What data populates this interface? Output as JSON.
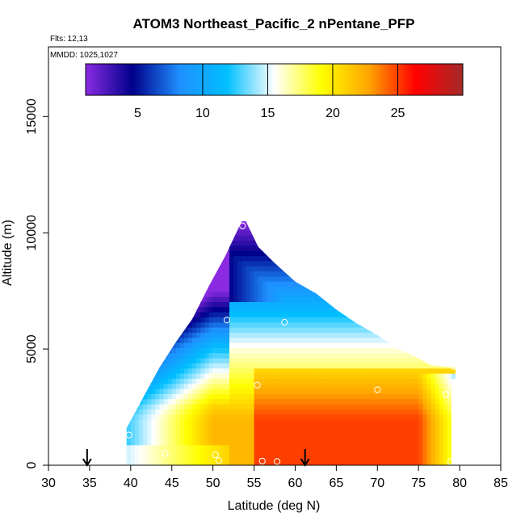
{
  "chart_data": {
    "type": "heatmap",
    "title": "ATOM3 Northeast_Pacific_2 nPentane_PFP",
    "subtitle_flights": "Flts: 12,13",
    "subtitle_dates": "MMDD: 1025,1027",
    "xlabel": "Latitude (deg N)",
    "ylabel": "Altitude (m)",
    "xlim": [
      30,
      85
    ],
    "ylim": [
      0,
      18000
    ],
    "x_ticks": [
      30,
      35,
      40,
      45,
      50,
      55,
      60,
      65,
      70,
      75,
      80,
      85
    ],
    "y_ticks": [
      0,
      5000,
      10000,
      15000
    ],
    "colorbar": {
      "range": [
        1,
        30
      ],
      "ticks": [
        5,
        10,
        15,
        20,
        25
      ],
      "tick_labels": [
        "5",
        "10",
        "15",
        "20",
        "25"
      ],
      "dividers": [
        10,
        15,
        20,
        25
      ],
      "colors": [
        "#8a2be2",
        "#00008b",
        "#1e90ff",
        "#00bfff",
        "#ffffff",
        "#ffff00",
        "#ffa500",
        "#ff0000",
        "#a52a2a"
      ]
    },
    "arrow_latitudes": [
      34.7,
      61.2
    ],
    "sample_points": [
      {
        "lat": 53.6,
        "alt": 10300
      },
      {
        "lat": 51.7,
        "alt": 6250
      },
      {
        "lat": 58.7,
        "alt": 6150
      },
      {
        "lat": 79.3,
        "alt": 4250
      },
      {
        "lat": 55.4,
        "alt": 3450
      },
      {
        "lat": 70.0,
        "alt": 3250
      },
      {
        "lat": 78.3,
        "alt": 3050
      },
      {
        "lat": 39.8,
        "alt": 1300
      },
      {
        "lat": 44.2,
        "alt": 500
      },
      {
        "lat": 50.3,
        "alt": 450
      },
      {
        "lat": 50.7,
        "alt": 200
      },
      {
        "lat": 56.0,
        "alt": 180
      },
      {
        "lat": 57.8,
        "alt": 160
      },
      {
        "lat": 78.9,
        "alt": 150
      }
    ],
    "field_envelope": [
      [
        39.5,
        0
      ],
      [
        39.5,
        1600
      ],
      [
        41.5,
        2900
      ],
      [
        43.5,
        4200
      ],
      [
        45.5,
        5300
      ],
      [
        47.5,
        6300
      ],
      [
        49.5,
        7700
      ],
      [
        51.5,
        9000
      ],
      [
        53.5,
        10500
      ],
      [
        54.0,
        10500
      ],
      [
        55.5,
        9400
      ],
      [
        57.5,
        8700
      ],
      [
        60.0,
        7900
      ],
      [
        62.5,
        7400
      ],
      [
        65.0,
        6700
      ],
      [
        67.5,
        6100
      ],
      [
        70.0,
        5600
      ],
      [
        72.5,
        5000
      ],
      [
        74.5,
        4700
      ],
      [
        76.5,
        4300
      ],
      [
        79.5,
        4200
      ],
      [
        79.5,
        3700
      ],
      [
        79.0,
        3700
      ],
      [
        79.0,
        0
      ]
    ]
  }
}
